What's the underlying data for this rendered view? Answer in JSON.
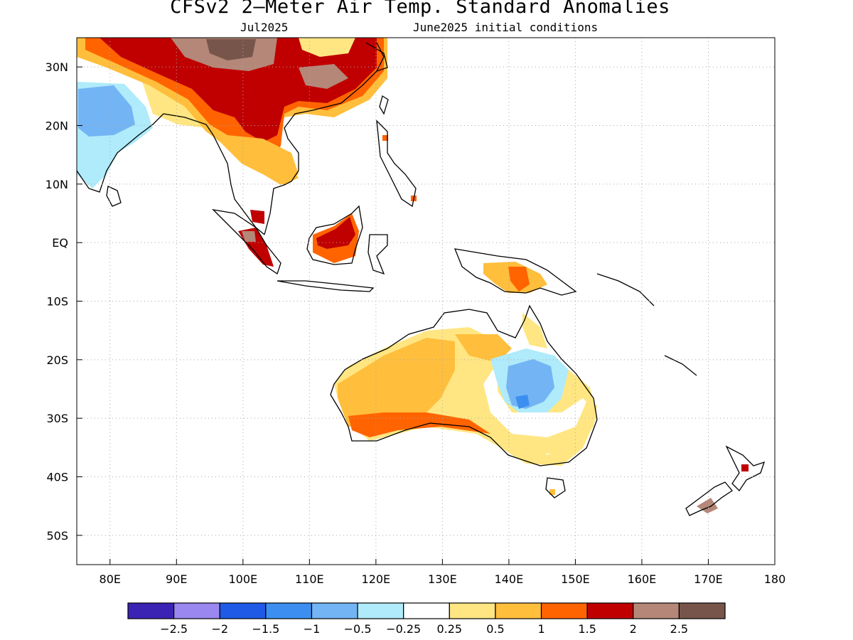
{
  "header": {
    "title": "CFSv2 2–Meter Air Temp. Standard Anomalies",
    "subtitle_left": "Jul2025",
    "subtitle_right": "June2025 initial conditions"
  },
  "map": {
    "lon_range": [
      75,
      180
    ],
    "lat_range": [
      -55,
      35
    ],
    "lon_ticks": [
      {
        "value": 80,
        "label": "80E"
      },
      {
        "value": 90,
        "label": "90E"
      },
      {
        "value": 100,
        "label": "100E"
      },
      {
        "value": 110,
        "label": "110E"
      },
      {
        "value": 120,
        "label": "120E"
      },
      {
        "value": 130,
        "label": "130E"
      },
      {
        "value": 140,
        "label": "140E"
      },
      {
        "value": 150,
        "label": "150E"
      },
      {
        "value": 160,
        "label": "160E"
      },
      {
        "value": 170,
        "label": "170E"
      },
      {
        "value": 180,
        "label": "180"
      }
    ],
    "lat_ticks": [
      {
        "value": 30,
        "label": "30N"
      },
      {
        "value": 20,
        "label": "20N"
      },
      {
        "value": 10,
        "label": "10N"
      },
      {
        "value": 0,
        "label": "EQ"
      },
      {
        "value": -10,
        "label": "10S"
      },
      {
        "value": -20,
        "label": "20S"
      },
      {
        "value": -30,
        "label": "30S"
      },
      {
        "value": -40,
        "label": "40S"
      },
      {
        "value": -50,
        "label": "50S"
      }
    ],
    "grid": "dotted",
    "anomaly_regions": [
      {
        "region": "Tibet / NW China",
        "level": 2.5
      },
      {
        "region": "Southern China",
        "level": 2
      },
      {
        "region": "Indochina",
        "level": 1.5
      },
      {
        "region": "Borneo",
        "level": 2
      },
      {
        "region": "Sumatra",
        "level": 2
      },
      {
        "region": "Western Australia",
        "level": 0.5
      },
      {
        "region": "Central Queensland",
        "level": -1
      },
      {
        "region": "Western India",
        "level": -1
      },
      {
        "region": "South Island NZ",
        "level": 2
      }
    ]
  },
  "colorbar": {
    "colors": [
      "#3b24b4",
      "#9a87f0",
      "#1e5ae6",
      "#3c8ff0",
      "#73b4f5",
      "#afebfa",
      "#ffffff",
      "#ffe682",
      "#ffbe3c",
      "#ff6400",
      "#c00000",
      "#b48778",
      "#78554b"
    ],
    "labels": [
      "−2.5",
      "−2",
      "−1.5",
      "−1",
      "−0.5",
      "−0.25",
      "0.25",
      "0.5",
      "1",
      "1.5",
      "2",
      "2.5"
    ]
  }
}
